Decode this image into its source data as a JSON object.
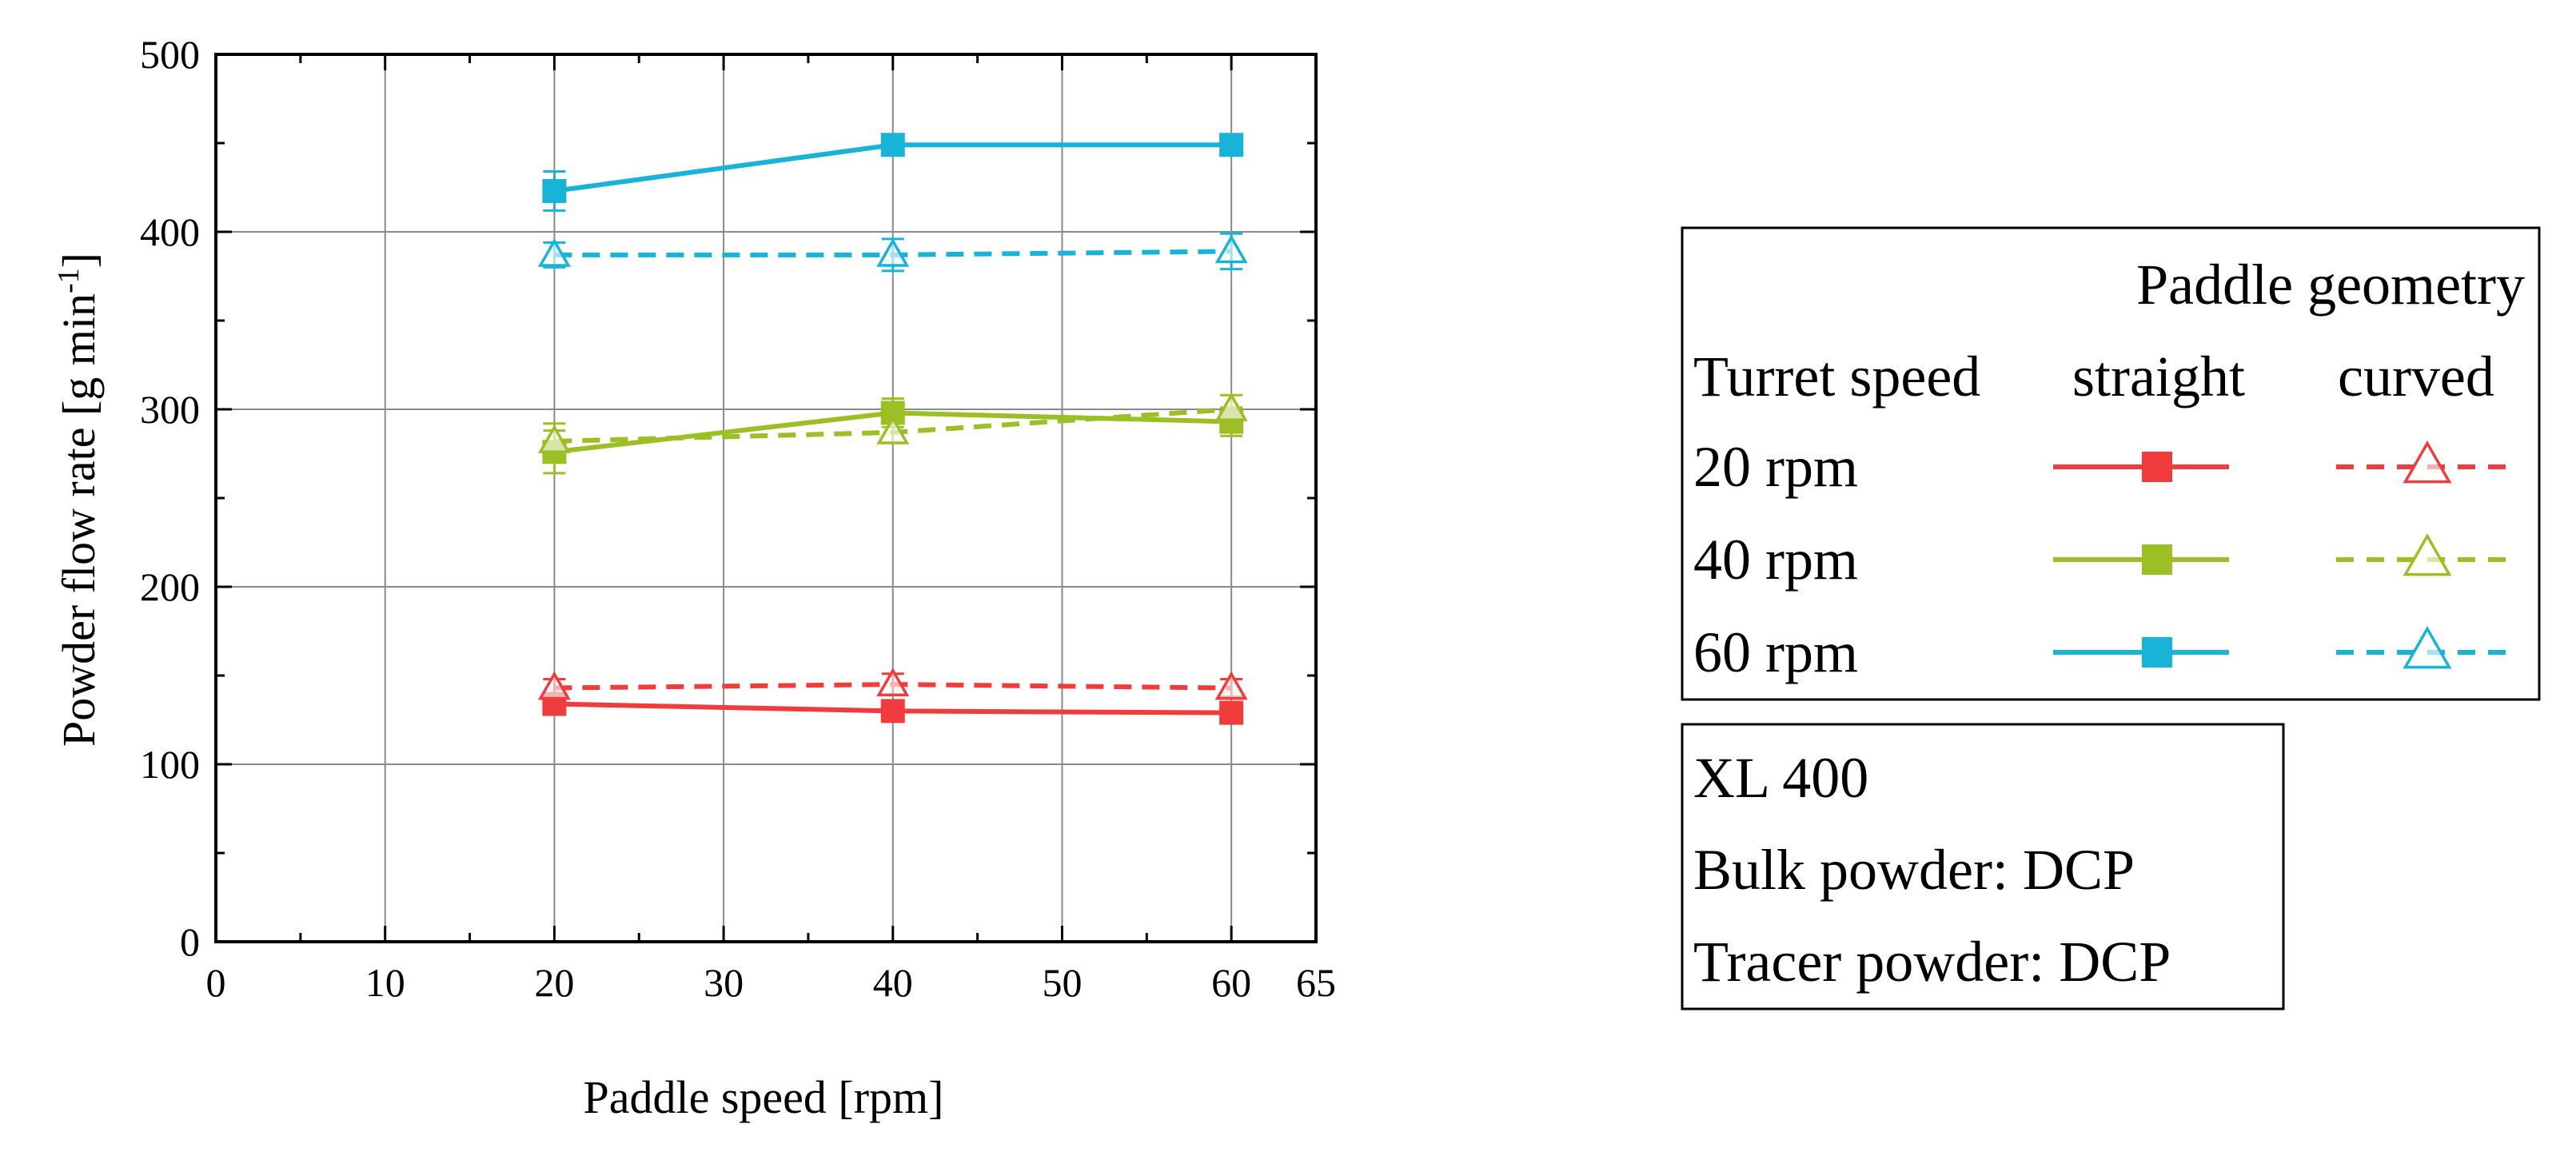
{
  "chart_data": {
    "type": "line",
    "x": [
      20,
      40,
      60
    ],
    "xlabel": "Paddle speed [rpm]",
    "ylabel": "Powder flow rate [g min",
    "ylabel_sup": "-1",
    "ylabel_close": "]",
    "xlim": [
      0,
      65
    ],
    "ylim": [
      0,
      500
    ],
    "xticks": [
      0,
      10,
      20,
      30,
      40,
      50,
      60,
      65
    ],
    "xtick_labels": [
      "0",
      "10",
      "20",
      "30",
      "40",
      "50",
      "60",
      "65"
    ],
    "yticks": [
      0,
      100,
      200,
      300,
      400,
      500
    ],
    "ytick_labels": [
      "0",
      "100",
      "200",
      "300",
      "400",
      "500"
    ],
    "grid": true,
    "series": [
      {
        "name": "20 rpm straight",
        "turret": "20 rpm",
        "geometry": "straight",
        "color": "#f03c3c",
        "marker": "square",
        "style": "solid",
        "values": [
          134,
          130,
          129
        ],
        "errors": [
          4,
          3,
          3
        ]
      },
      {
        "name": "20 rpm curved",
        "turret": "20 rpm",
        "geometry": "curved",
        "color": "#f03c3c",
        "marker": "triangle-open",
        "style": "dashed",
        "values": [
          143,
          145,
          143
        ],
        "errors": [
          5,
          6,
          5
        ]
      },
      {
        "name": "40 rpm straight",
        "turret": "40 rpm",
        "geometry": "straight",
        "color": "#9bbf24",
        "marker": "square",
        "style": "solid",
        "values": [
          276,
          298,
          293
        ],
        "errors": [
          12,
          8,
          8
        ]
      },
      {
        "name": "40 rpm curved",
        "turret": "40 rpm",
        "geometry": "curved",
        "color": "#9bbf24",
        "marker": "triangle-open",
        "style": "dashed",
        "values": [
          282,
          287,
          300
        ],
        "errors": [
          10,
          6,
          8
        ]
      },
      {
        "name": "60 rpm straight",
        "turret": "60 rpm",
        "geometry": "straight",
        "color": "#18b3d6",
        "marker": "square",
        "style": "solid",
        "values": [
          423,
          449,
          449
        ],
        "errors": [
          11,
          5,
          4
        ]
      },
      {
        "name": "60 rpm curved",
        "turret": "60 rpm",
        "geometry": "curved",
        "color": "#18b3d6",
        "marker": "triangle-open",
        "style": "dashed",
        "values": [
          387,
          387,
          389
        ],
        "errors": [
          7,
          9,
          10
        ]
      }
    ],
    "legend": {
      "title": "Paddle geometry",
      "col_header_turret": "Turret speed",
      "col_header_straight": "straight",
      "col_header_curved": "curved",
      "rows": [
        "20 rpm",
        "40 rpm",
        "60 rpm"
      ]
    },
    "annotation": [
      "XL 400",
      "Bulk powder: DCP",
      "Tracer powder: DCP"
    ]
  }
}
